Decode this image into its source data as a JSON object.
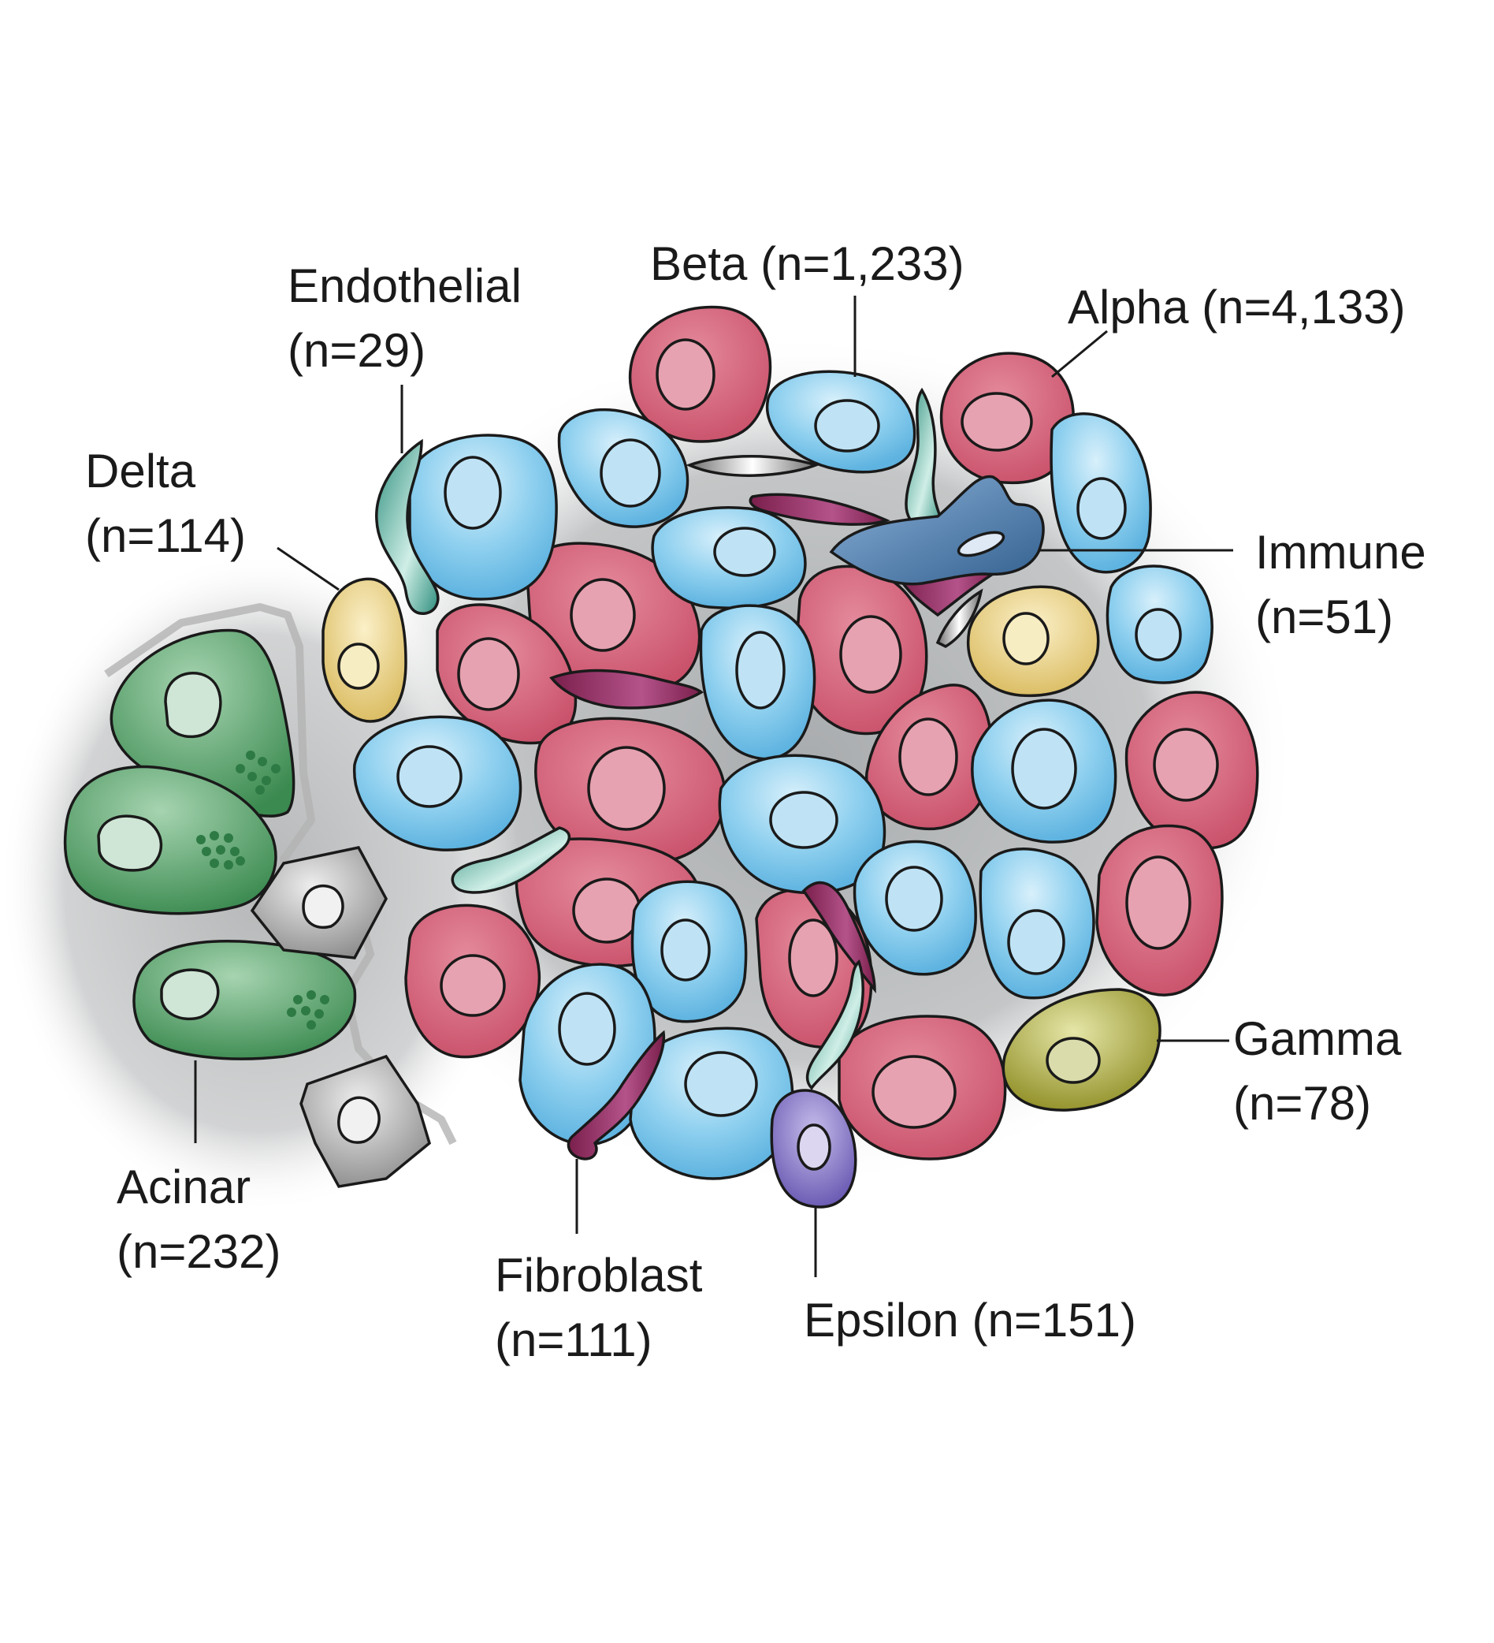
{
  "labels": {
    "beta": {
      "name": "Beta",
      "count": "(n=1,233)"
    },
    "alpha": {
      "name": "Alpha",
      "count": "(n=4,133)"
    },
    "endothelial": {
      "name": "Endothelial",
      "count": "(n=29)"
    },
    "delta": {
      "name": "Delta",
      "count": "(n=114)"
    },
    "immune": {
      "name": "Immune",
      "count": "(n=51)"
    },
    "gamma": {
      "name": "Gamma",
      "count": "(n=78)"
    },
    "acinar": {
      "name": "Acinar",
      "count": "(n=232)"
    },
    "fibroblast": {
      "name": "Fibroblast",
      "count": "(n=111)"
    },
    "epsilon": {
      "name": "Epsilon",
      "count": "(n=151)"
    }
  },
  "colors": {
    "alpha": "#cf5d72",
    "alpha_nucleus": "#e6a2b0",
    "beta": "#7cc6ea",
    "beta_nucleus": "#bfe3f5",
    "delta": "#e8cf7e",
    "delta_nucleus": "#f7edc2",
    "gamma": "#a3a23c",
    "gamma_nucleus": "#dbdcac",
    "epsilon": "#7c6cc0",
    "epsilon_nucleus": "#ddd6f0",
    "acinar": "#4f9b62",
    "acinar_nucleus": "#cfe6d6",
    "ductal": "#9a9a9a",
    "immune": "#3f6ea3",
    "fibroblast": "#8e2a5a",
    "endothelial": "#3a9d8a",
    "background": "#c8cacb"
  }
}
